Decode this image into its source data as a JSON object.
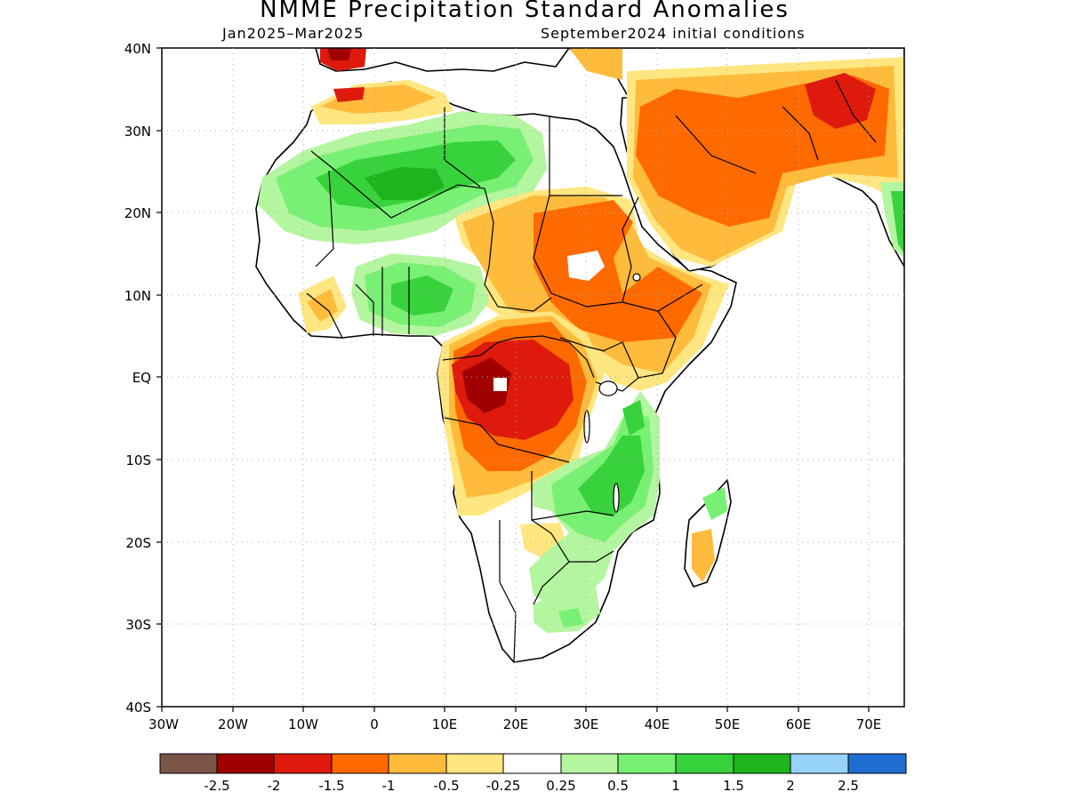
{
  "title": "NMME Precipitation Standard Anomalies",
  "subtitle_left": "Jan2025–Mar2025",
  "subtitle_right": "September2024 initial conditions",
  "lat_labels": [
    "40N",
    "30N",
    "20N",
    "10N",
    "EQ",
    "10S",
    "20S",
    "30S",
    "40S"
  ],
  "lon_labels": [
    "30W",
    "20W",
    "10W",
    "0",
    "10E",
    "20E",
    "30E",
    "40E",
    "50E",
    "60E",
    "70E"
  ],
  "colorbar": {
    "colors": [
      "#7a5547",
      "#a00000",
      "#de1a0d",
      "#ff6a00",
      "#ffbb3c",
      "#ffe680",
      "#ffffff",
      "#b4f5a0",
      "#78f073",
      "#37d23c",
      "#1eb41e",
      "#96d2fa",
      "#1e6ed2"
    ],
    "labels": [
      "-2.5",
      "-2",
      "-1.5",
      "-1",
      "-0.5",
      "-0.25",
      "0.25",
      "0.5",
      "1",
      "1.5",
      "2",
      "2.5"
    ]
  }
}
